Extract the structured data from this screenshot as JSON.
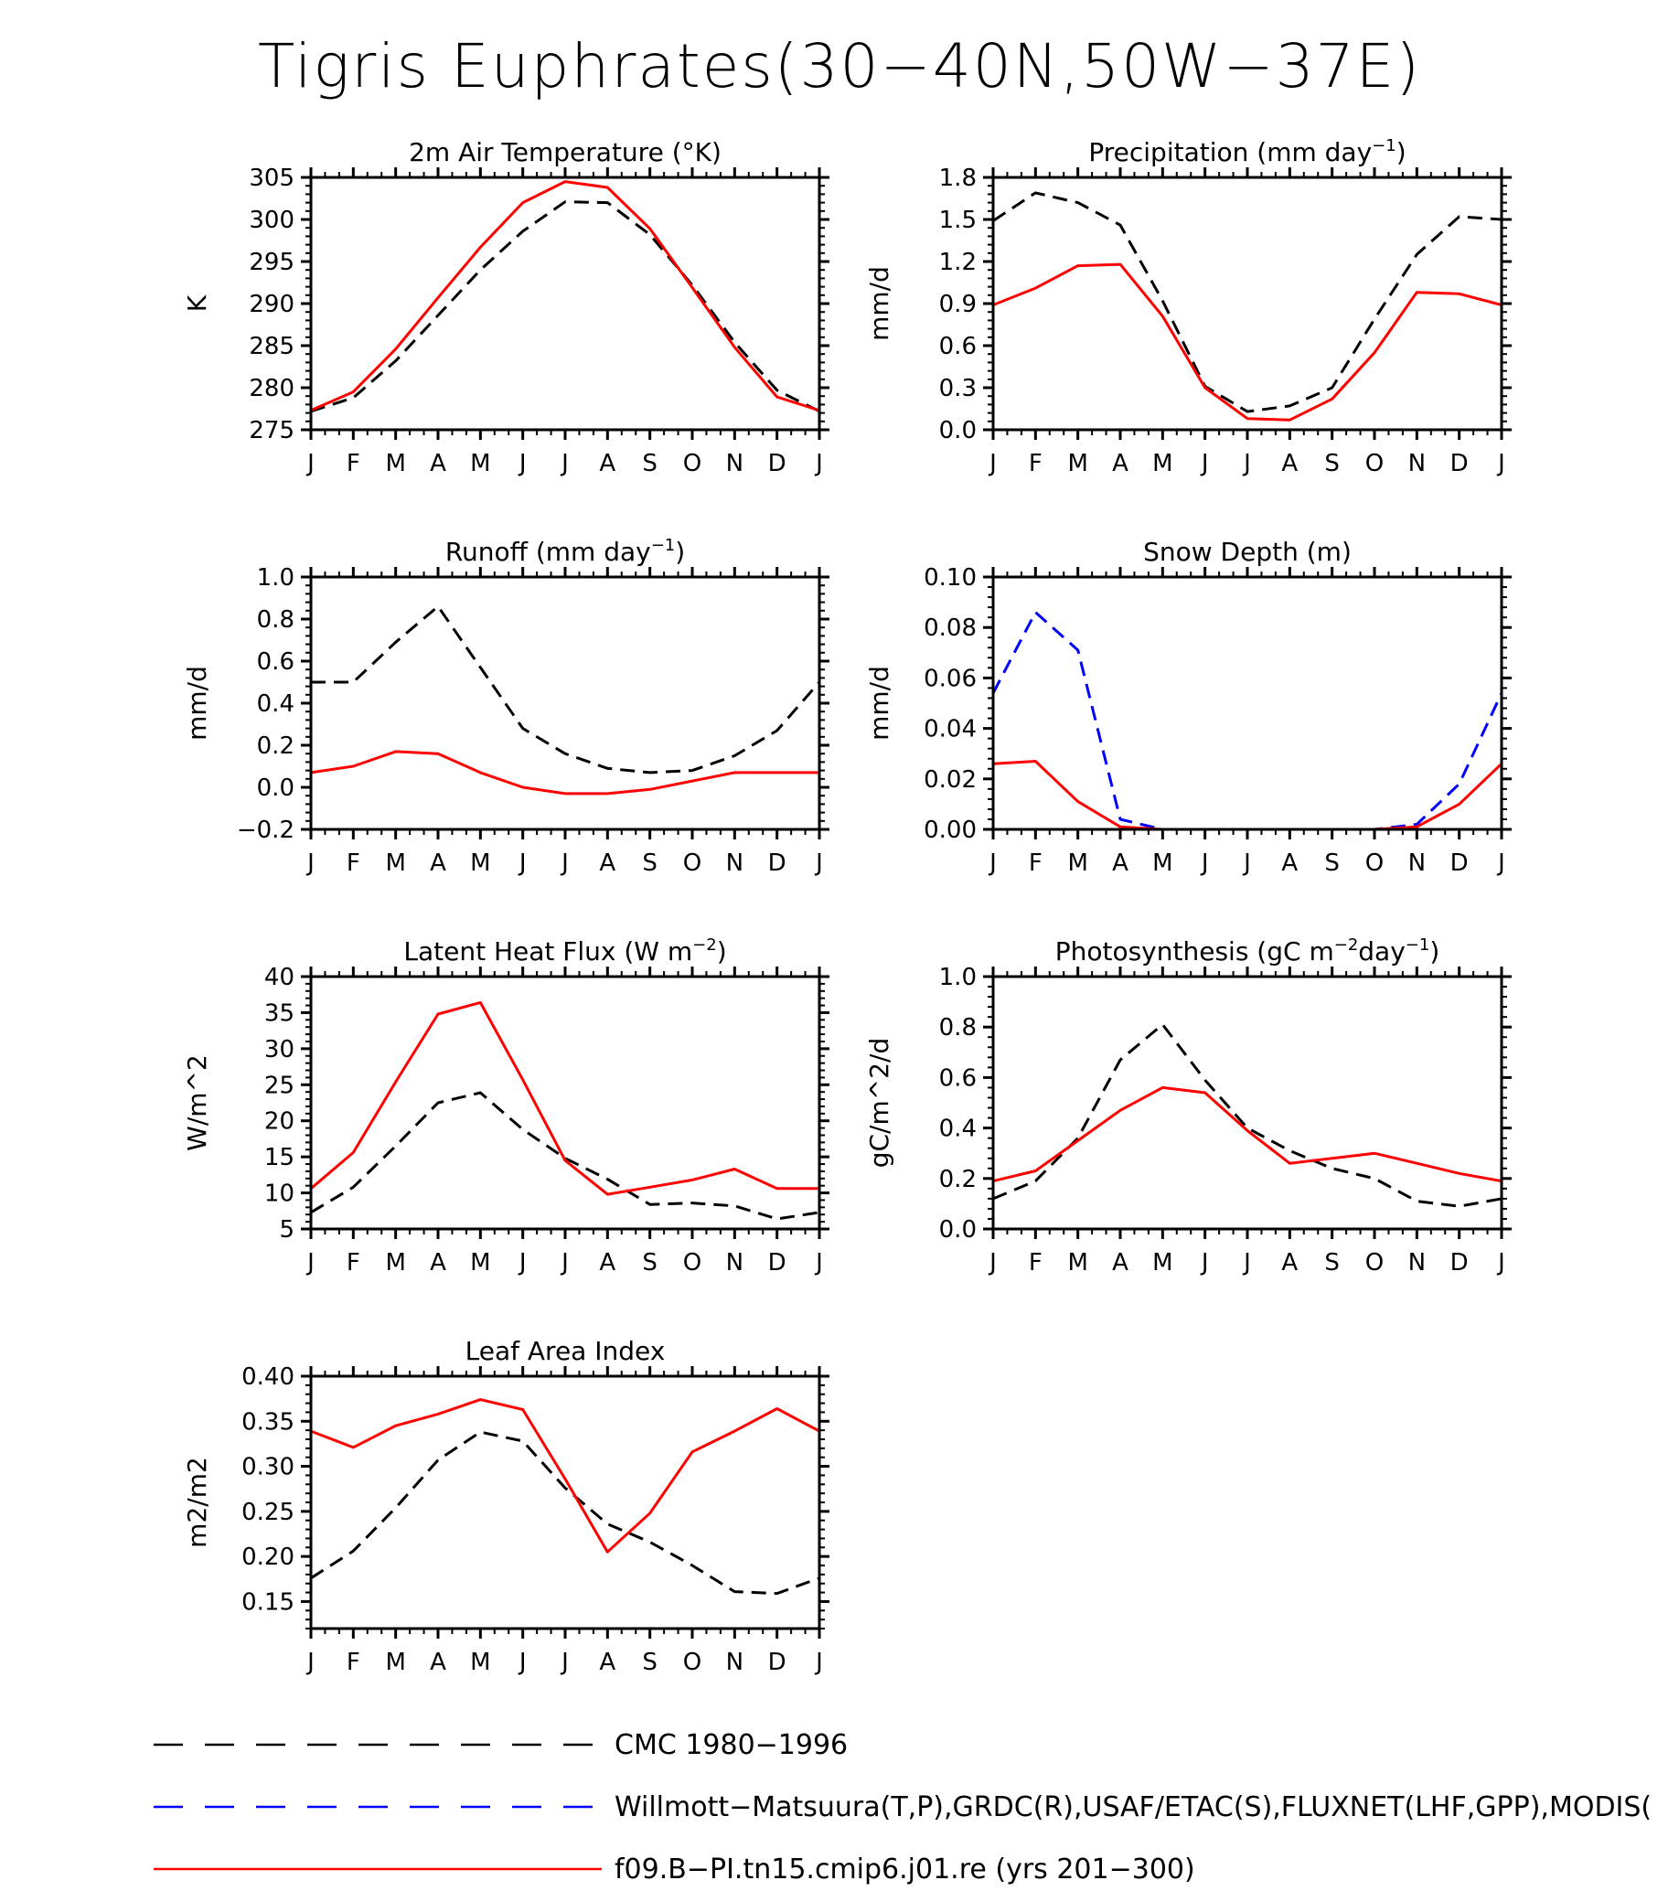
{
  "title": "Tigris Euphrates(30-40N,50W-37E)",
  "month_labels": [
    "J",
    "F",
    "M",
    "A",
    "M",
    "J",
    "J",
    "A",
    "S",
    "O",
    "N",
    "D",
    "J"
  ],
  "colors": {
    "CMC": "#000000",
    "obs": "#0000ff",
    "model": "#ff0000"
  },
  "legend": [
    {
      "key": "CMC",
      "label": "CMC 1980-1996",
      "style": "dashed"
    },
    {
      "key": "obs",
      "label": "Willmott-Matsuura(T,P),GRDC(R),USAF/ETAC(S),FLUXNET(LHF,GPP),MODIS(",
      "style": "dashed"
    },
    {
      "key": "model",
      "label": "f09.B-PI.tn15.cmip6.j01.re (yrs 201-300)",
      "style": "solid"
    }
  ],
  "chart_data": [
    {
      "type": "line",
      "title": "2m Air Temperature (°K)",
      "ylabel": "K",
      "ylim": [
        275,
        305
      ],
      "yticks": [
        275,
        280,
        285,
        290,
        295,
        300,
        305
      ],
      "ytick_labels": [
        "275",
        "280",
        "285",
        "290",
        "295",
        "300",
        "305"
      ],
      "series": [
        {
          "name": "CMC 1980-1996",
          "key": "CMC",
          "values": [
            277.2,
            278.8,
            283.2,
            288.6,
            294.0,
            298.6,
            302.1,
            302.0,
            298.2,
            292.2,
            285.4,
            279.7,
            277.2
          ]
        },
        {
          "name": "f09.B-PI.tn15.cmip6.j01.re (yrs 201-300)",
          "key": "model",
          "values": [
            277.3,
            279.5,
            284.6,
            290.7,
            296.7,
            302.0,
            304.5,
            303.8,
            298.9,
            291.9,
            284.8,
            278.9,
            277.3
          ]
        }
      ]
    },
    {
      "type": "line",
      "title": "Precipitation (mm day-1)",
      "title_main": "Precipitation (mm day",
      "title_sup": "-1",
      "title_end": ")",
      "ylabel": "mm/d",
      "ylim": [
        0.0,
        1.8
      ],
      "yticks": [
        0.0,
        0.3,
        0.6,
        0.9,
        1.2,
        1.5,
        1.8
      ],
      "ytick_labels": [
        "0.0",
        "0.3",
        "0.6",
        "0.9",
        "1.2",
        "1.5",
        "1.8"
      ],
      "series": [
        {
          "name": "CMC 1980-1996",
          "key": "CMC",
          "values": [
            1.49,
            1.69,
            1.62,
            1.46,
            0.92,
            0.31,
            0.13,
            0.17,
            0.3,
            0.79,
            1.25,
            1.52,
            1.5
          ]
        },
        {
          "name": "f09.B-PI.tn15.cmip6.j01.re (yrs 201-300)",
          "key": "model",
          "values": [
            0.89,
            1.01,
            1.17,
            1.18,
            0.81,
            0.3,
            0.08,
            0.07,
            0.22,
            0.55,
            0.98,
            0.97,
            0.89
          ]
        }
      ]
    },
    {
      "type": "line",
      "title": "Runoff (mm day-1)",
      "title_main": "Runoff (mm day",
      "title_sup": "-1",
      "title_end": ")",
      "ylabel": "mm/d",
      "ylim": [
        -0.2,
        1.0
      ],
      "yticks": [
        -0.2,
        0.0,
        0.2,
        0.4,
        0.6,
        0.8,
        1.0
      ],
      "ytick_labels": [
        "-0.2",
        "0.0",
        "0.2",
        "0.4",
        "0.6",
        "0.8",
        "1.0"
      ],
      "series": [
        {
          "name": "CMC 1980-1996",
          "key": "CMC",
          "values": [
            0.5,
            0.5,
            0.69,
            0.86,
            0.57,
            0.28,
            0.16,
            0.09,
            0.07,
            0.08,
            0.15,
            0.27,
            0.5
          ]
        },
        {
          "name": "f09.B-PI.tn15.cmip6.j01.re (yrs 201-300)",
          "key": "model",
          "values": [
            0.07,
            0.1,
            0.17,
            0.16,
            0.07,
            0.0,
            -0.03,
            -0.03,
            -0.01,
            0.03,
            0.07,
            0.07,
            0.07
          ]
        }
      ]
    },
    {
      "type": "line",
      "title": "Snow Depth (m)",
      "ylabel": "mm/d",
      "ylim": [
        0.0,
        0.1
      ],
      "yticks": [
        0.0,
        0.02,
        0.04,
        0.06,
        0.08,
        0.1
      ],
      "ytick_labels": [
        "0.00",
        "0.02",
        "0.04",
        "0.06",
        "0.08",
        "0.10"
      ],
      "series": [
        {
          "name": "CMC 1980-1996",
          "key": "CMC",
          "values": [
            0.0,
            0.0,
            0.0,
            0.0,
            0.0,
            0.0,
            0.0,
            0.0,
            0.0,
            0.0,
            0.0,
            0.0,
            0.0
          ]
        },
        {
          "name": "Willmott-Matsuura(T,P),GRDC(R),USAF/ETAC(S),FLUXNET(LHF,GPP),MODIS(",
          "key": "obs",
          "values": [
            0.054,
            0.086,
            0.071,
            0.004,
            0.0,
            0.0,
            0.0,
            0.0,
            0.0,
            0.0,
            0.002,
            0.018,
            0.054
          ]
        },
        {
          "name": "f09.B-PI.tn15.cmip6.j01.re (yrs 201-300)",
          "key": "model",
          "values": [
            0.026,
            0.027,
            0.011,
            0.001,
            0.0,
            0.0,
            0.0,
            0.0,
            0.0,
            0.0,
            0.001,
            0.01,
            0.026
          ]
        }
      ]
    },
    {
      "type": "line",
      "title": "Latent Heat Flux (W m-2)",
      "title_main": "Latent Heat Flux (W m",
      "title_sup": "-2",
      "title_end": ")",
      "ylabel": "W/m^2",
      "ylim": [
        5,
        40
      ],
      "yticks": [
        5,
        10,
        15,
        20,
        25,
        30,
        35,
        40
      ],
      "ytick_labels": [
        "5",
        "10",
        "15",
        "20",
        "25",
        "30",
        "35",
        "40"
      ],
      "series": [
        {
          "name": "CMC 1980-1996",
          "key": "CMC",
          "values": [
            7.3,
            10.8,
            16.5,
            22.5,
            23.9,
            18.8,
            14.8,
            11.9,
            8.4,
            8.6,
            8.2,
            6.4,
            7.3
          ]
        },
        {
          "name": "f09.B-PI.tn15.cmip6.j01.re (yrs 201-300)",
          "key": "model",
          "values": [
            10.6,
            15.6,
            25.4,
            34.8,
            36.4,
            25.7,
            14.5,
            9.8,
            10.8,
            11.8,
            13.3,
            10.6,
            10.6
          ]
        }
      ]
    },
    {
      "type": "line",
      "title": "Photosynthesis (gC m-2day-1)",
      "title_main": "Photosynthesis (gC m",
      "title_sup": "-2",
      "title_mid": "day",
      "title_sup2": "-1",
      "title_end": ")",
      "ylabel": "gC/m^2/d",
      "ylim": [
        0.0,
        1.0
      ],
      "yticks": [
        0.0,
        0.2,
        0.4,
        0.6,
        0.8,
        1.0
      ],
      "ytick_labels": [
        "0.0",
        "0.2",
        "0.4",
        "0.6",
        "0.8",
        "1.0"
      ],
      "series": [
        {
          "name": "CMC 1980-1996",
          "key": "CMC",
          "values": [
            0.12,
            0.19,
            0.36,
            0.67,
            0.81,
            0.59,
            0.4,
            0.31,
            0.24,
            0.2,
            0.11,
            0.09,
            0.12
          ]
        },
        {
          "name": "f09.B-PI.tn15.cmip6.j01.re (yrs 201-300)",
          "key": "model",
          "values": [
            0.19,
            0.23,
            0.35,
            0.47,
            0.56,
            0.54,
            0.39,
            0.26,
            0.28,
            0.3,
            0.26,
            0.22,
            0.19
          ]
        }
      ]
    },
    {
      "type": "line",
      "title": "Leaf Area Index",
      "ylabel": "m2/m2",
      "ylim": [
        0.12,
        0.4
      ],
      "yticks": [
        0.15,
        0.2,
        0.25,
        0.3,
        0.35,
        0.4
      ],
      "ytick_labels": [
        "0.15",
        "0.20",
        "0.25",
        "0.30",
        "0.35",
        "0.40"
      ],
      "series": [
        {
          "name": "CMC 1980-1996",
          "key": "CMC",
          "values": [
            0.176,
            0.206,
            0.254,
            0.307,
            0.338,
            0.328,
            0.276,
            0.236,
            0.216,
            0.19,
            0.161,
            0.159,
            0.176
          ]
        },
        {
          "name": "f09.B-PI.tn15.cmip6.j01.re (yrs 201-300)",
          "key": "model",
          "values": [
            0.339,
            0.321,
            0.345,
            0.358,
            0.374,
            0.363,
            0.286,
            0.205,
            0.248,
            0.316,
            0.339,
            0.364,
            0.339
          ]
        }
      ]
    }
  ]
}
